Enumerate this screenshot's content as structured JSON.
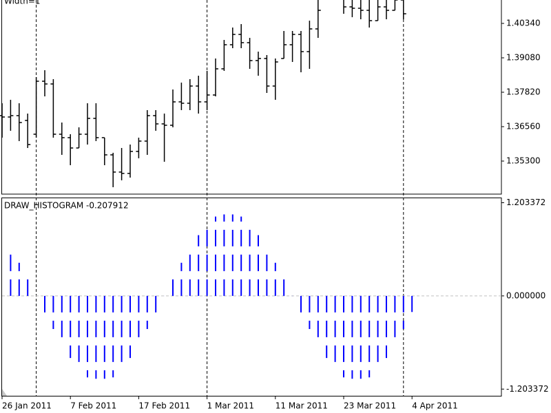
{
  "chart_data": [
    {
      "type": "ohlc",
      "label": "Width=1",
      "categories": [
        "26 Jan 2011",
        null,
        null,
        null,
        null,
        null,
        null,
        null,
        "7 Feb 2011",
        null,
        null,
        null,
        null,
        null,
        null,
        null,
        "17 Feb 2011",
        null,
        null,
        null,
        null,
        null,
        null,
        null,
        "1 Mar 2011",
        null,
        null,
        null,
        null,
        null,
        null,
        null,
        "11 Mar 2011",
        null,
        null,
        null,
        null,
        null,
        null,
        null,
        "23 Mar 2011",
        null,
        null,
        null,
        null,
        null,
        null,
        null,
        "4 Apr 2011"
      ],
      "color": "#000000",
      "open": [
        1.36963,
        1.36913,
        1.36963,
        1.36787,
        1.36283,
        1.38223,
        1.38123,
        1.36283,
        1.36157,
        1.35779,
        1.36283,
        1.36863,
        1.36157,
        1.35527,
        1.34897,
        1.34847,
        1.35653,
        1.36031,
        1.36963,
        1.36661,
        1.36611,
        1.37467,
        1.37417,
        1.38047,
        1.37467,
        1.37719,
        1.38677,
        1.39559,
        1.39937,
        1.39635,
        1.38979,
        1.39055,
        1.38047,
        1.39055,
        1.39559,
        1.39937,
        1.39307,
        1.40139,
        1.41323,
        1.41701,
        1.41449,
        1.40945,
        1.40895,
        1.40819,
        1.40441,
        1.40945,
        1.40819,
        1.41197,
        1.41701
      ],
      "high": [
        1.37417,
        1.37543,
        1.37417,
        1.37039,
        1.38375,
        1.38627,
        1.38299,
        1.36711,
        1.36283,
        1.36535,
        1.37417,
        1.37417,
        1.36157,
        1.35603,
        1.35779,
        1.35905,
        1.36157,
        1.37165,
        1.37165,
        1.37039,
        1.37921,
        1.38173,
        1.38299,
        1.38425,
        1.38601,
        1.39055,
        1.39735,
        1.40189,
        1.40315,
        1.39811,
        1.39307,
        1.39181,
        1.39055,
        1.40063,
        1.40063,
        1.40063,
        1.40441,
        1.41701,
        1.42205,
        1.42205,
        1.41575,
        1.41449,
        1.41449,
        1.41449,
        1.41449,
        1.41449,
        1.41575,
        1.41449,
        1.41953
      ],
      "low": [
        1.36157,
        1.36409,
        1.36031,
        1.35779,
        1.36157,
        1.37669,
        1.36157,
        1.35527,
        1.35149,
        1.35779,
        1.35905,
        1.36031,
        1.35149,
        1.34343,
        1.34595,
        1.34695,
        1.35401,
        1.35527,
        1.36409,
        1.35275,
        1.36535,
        1.37165,
        1.37165,
        1.37039,
        1.37165,
        1.37669,
        1.38601,
        1.39433,
        1.39433,
        1.38677,
        1.38425,
        1.37795,
        1.37543,
        1.39055,
        1.38929,
        1.38551,
        1.38677,
        1.39811,
        1.41323,
        1.41323,
        1.40693,
        1.40567,
        1.40491,
        1.40189,
        1.40441,
        1.40491,
        1.40819,
        1.40491,
        1.41323
      ],
      "close": [
        1.36913,
        1.36963,
        1.36711,
        1.35905,
        1.38223,
        1.38123,
        1.36283,
        1.36157,
        1.35779,
        1.36283,
        1.36863,
        1.36157,
        1.35527,
        1.34897,
        1.34847,
        1.35653,
        1.36031,
        1.36963,
        1.36661,
        1.36611,
        1.37467,
        1.37417,
        1.38047,
        1.37467,
        1.37719,
        1.38677,
        1.39559,
        1.39937,
        1.39635,
        1.38979,
        1.39055,
        1.38047,
        1.38929,
        1.39559,
        1.39937,
        1.39307,
        1.40139,
        1.40819,
        1.41701,
        1.41449,
        1.40945,
        1.40895,
        1.40819,
        1.40441,
        1.40945,
        1.40819,
        1.41197,
        1.40693,
        1.41449
      ],
      "ylim": [
        1.3409,
        1.41197
      ],
      "yticks": [
        {
          "value": 1.4034,
          "label": "1.40340"
        },
        {
          "value": 1.3908,
          "label": "1.39080"
        },
        {
          "value": 1.3782,
          "label": "1.37820"
        },
        {
          "value": 1.3656,
          "label": "1.36560"
        },
        {
          "value": 1.353,
          "label": "1.35300"
        }
      ]
    },
    {
      "type": "histogram-bars",
      "title": "DRAW_HISTOGRAM -0.207912",
      "color": "#0000ff",
      "values": [
        null,
        0.624,
        0.428,
        0.223,
        0,
        -0.241,
        -0.428,
        -0.624,
        -0.802,
        -0.936,
        -1.052,
        -1.07,
        -1.07,
        -1.052,
        -0.936,
        -0.802,
        -0.624,
        -0.428,
        -0.241,
        0,
        0.223,
        0.428,
        0.624,
        0.784,
        0.936,
        1.025,
        1.052,
        1.052,
        1.025,
        0.936,
        0.784,
        0.624,
        0.428,
        0.223,
        0,
        -0.241,
        -0.428,
        -0.624,
        -0.802,
        -0.936,
        -1.052,
        -1.07,
        -1.07,
        -1.052,
        -0.936,
        -0.802,
        -0.624,
        -0.428,
        -0.208
      ],
      "ylim": [
        -1.29,
        1.27
      ],
      "yticks": [
        1.203372,
        {
          "value": 0,
          "label": "0.000000"
        },
        -1.203372
      ]
    }
  ]
}
